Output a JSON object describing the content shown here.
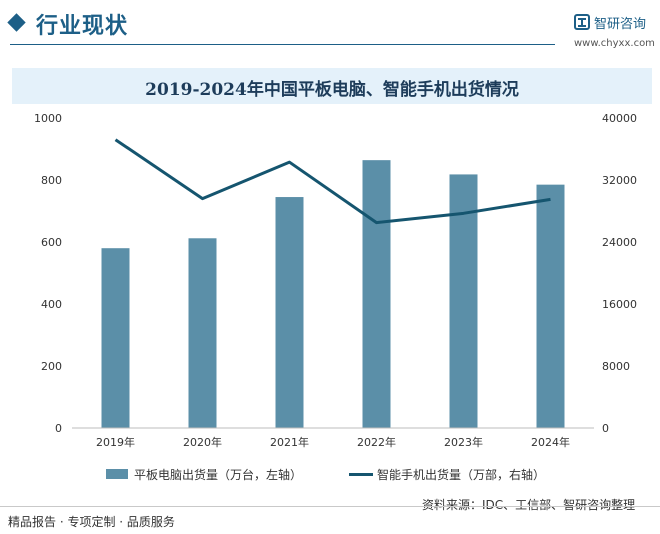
{
  "header": {
    "section_title": "行业现状",
    "logo_name": "智研咨询",
    "logo_url": "www.chyxx.com"
  },
  "chart_data": {
    "type": "bar",
    "title": "2019-2024年中国平板电脑、智能手机出货情况",
    "categories": [
      "2019年",
      "2020年",
      "2021年",
      "2022年",
      "2023年",
      "2024年"
    ],
    "series": [
      {
        "name": "平板电脑出货量（万台，左轴）",
        "type": "bar",
        "axis": "left",
        "color": "#5b8fa8",
        "values": [
          580,
          612,
          745,
          864,
          818,
          785
        ]
      },
      {
        "name": "智能手机出货量（万部，右轴）",
        "type": "line",
        "axis": "right",
        "color": "#15556f",
        "values": [
          37200,
          29600,
          34300,
          26500,
          27700,
          29500
        ]
      }
    ],
    "left_axis": {
      "ylim": [
        0,
        1000
      ],
      "ticks": [
        "0",
        "200",
        "400",
        "600",
        "800",
        "1000"
      ]
    },
    "right_axis": {
      "ylim": [
        0,
        40000
      ],
      "ticks": [
        "0",
        "8000",
        "16000",
        "24000",
        "32000",
        "40000"
      ]
    },
    "grid": false,
    "legend_position": "bottom"
  },
  "source": "资料来源：IDC、工信部、智研咨询整理",
  "footer": {
    "text": "精品报告 · 专项定制 · 品质服务"
  }
}
